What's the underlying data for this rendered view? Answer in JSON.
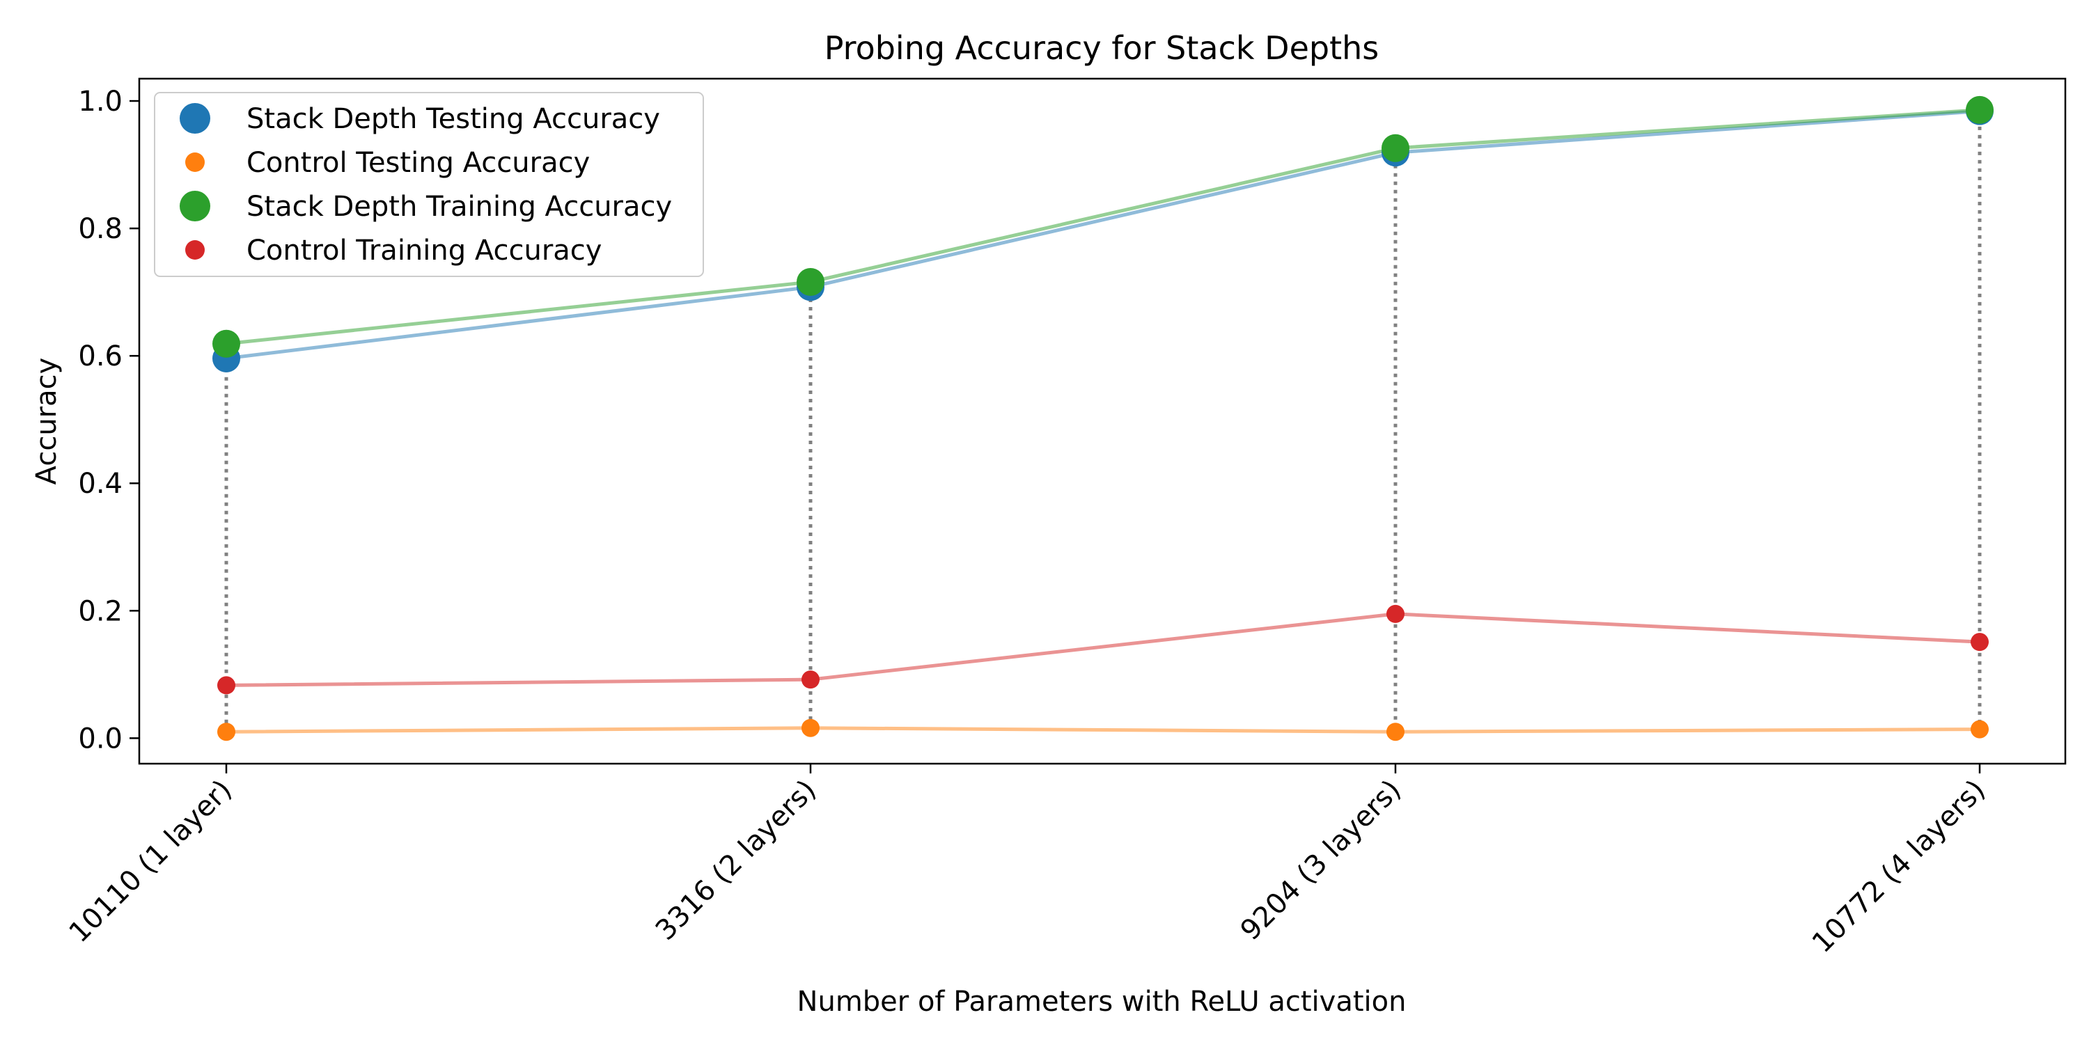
{
  "chart_data": {
    "type": "line",
    "title": "Probing Accuracy for Stack Depths",
    "xlabel": "Number of Parameters with ReLU activation",
    "ylabel": "Accuracy",
    "categories": [
      "10110 (1 layer)",
      "3316 (2 layers)",
      "9204 (3 layers)",
      "10772 (4 layers)"
    ],
    "ylim": [
      -0.04,
      1.035
    ],
    "yticks": [
      0.0,
      0.2,
      0.4,
      0.6,
      0.8,
      1.0
    ],
    "ytick_labels": [
      "0.0",
      "0.2",
      "0.4",
      "0.6",
      "0.8",
      "1.0"
    ],
    "grid": false,
    "legend_position": "top-left",
    "series": [
      {
        "name": "Stack Depth Testing Accuracy",
        "color": "#1f77b4",
        "marker": "large",
        "values": [
          0.596,
          0.708,
          0.919,
          0.984
        ]
      },
      {
        "name": "Control Testing Accuracy",
        "color": "#ff7f0e",
        "marker": "small",
        "values": [
          0.01,
          0.016,
          0.01,
          0.014
        ]
      },
      {
        "name": "Stack Depth Training Accuracy",
        "color": "#2ca02c",
        "marker": "large",
        "values": [
          0.619,
          0.716,
          0.926,
          0.986
        ]
      },
      {
        "name": "Control Training Accuracy",
        "color": "#d62728",
        "marker": "small",
        "values": [
          0.083,
          0.092,
          0.195,
          0.151
        ]
      }
    ]
  }
}
